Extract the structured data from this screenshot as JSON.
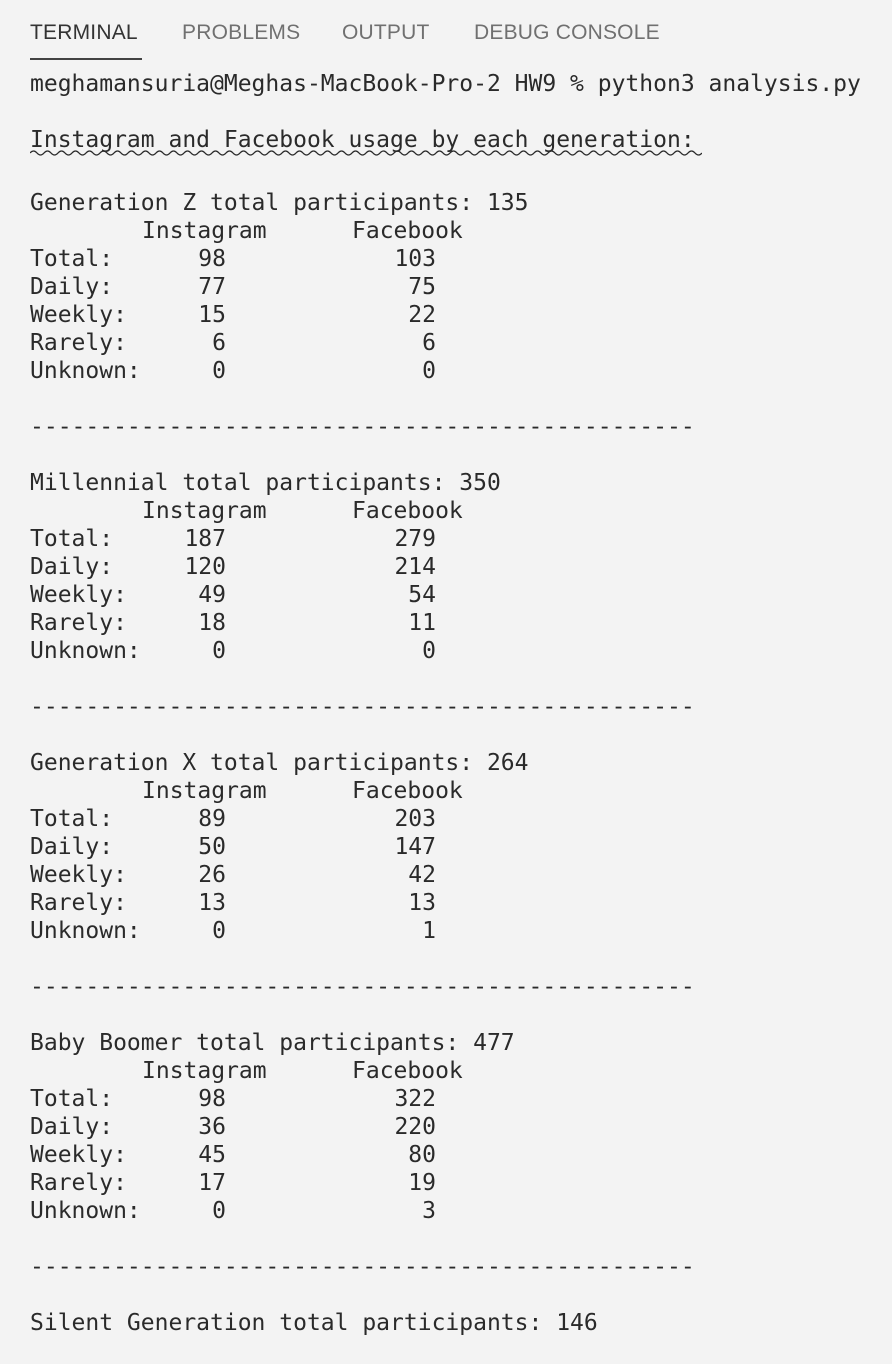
{
  "tabs": [
    {
      "label": "TERMINAL",
      "active": true
    },
    {
      "label": "PROBLEMS",
      "active": false
    },
    {
      "label": "OUTPUT",
      "active": false
    },
    {
      "label": "DEBUG CONSOLE",
      "active": false
    }
  ],
  "terminal": {
    "prompt": "meghamansuria@Meghas-MacBook-Pro-2 HW9 % python3 analysis.py",
    "heading": "Instagram and Facebook usage by each generation:",
    "separator": "------------------------------------------------",
    "column_headers": {
      "instagram": "Instagram",
      "facebook": "Facebook"
    },
    "row_labels": {
      "total": "Total:",
      "daily": "Daily:",
      "weekly": "Weekly:",
      "rarely": "Rarely:",
      "unknown": "Unknown:"
    },
    "generations": [
      {
        "title": "Generation Z total participants: 135",
        "instagram": {
          "total": "98",
          "daily": "77",
          "weekly": "15",
          "rarely": "6",
          "unknown": "0"
        },
        "facebook": {
          "total": "103",
          "daily": "75",
          "weekly": "22",
          "rarely": "6",
          "unknown": "0"
        }
      },
      {
        "title": "Millennial total participants: 350",
        "instagram": {
          "total": "187",
          "daily": "120",
          "weekly": "49",
          "rarely": "18",
          "unknown": "0"
        },
        "facebook": {
          "total": "279",
          "daily": "214",
          "weekly": "54",
          "rarely": "11",
          "unknown": "0"
        }
      },
      {
        "title": "Generation X total participants: 264",
        "instagram": {
          "total": "89",
          "daily": "50",
          "weekly": "26",
          "rarely": "13",
          "unknown": "0"
        },
        "facebook": {
          "total": "203",
          "daily": "147",
          "weekly": "42",
          "rarely": "13",
          "unknown": "1"
        }
      },
      {
        "title": "Baby Boomer total participants: 477",
        "instagram": {
          "total": "98",
          "daily": "36",
          "weekly": "45",
          "rarely": "17",
          "unknown": "0"
        },
        "facebook": {
          "total": "322",
          "daily": "220",
          "weekly": "80",
          "rarely": "19",
          "unknown": "3"
        }
      }
    ],
    "last_line": "Silent Generation total participants: 146"
  }
}
